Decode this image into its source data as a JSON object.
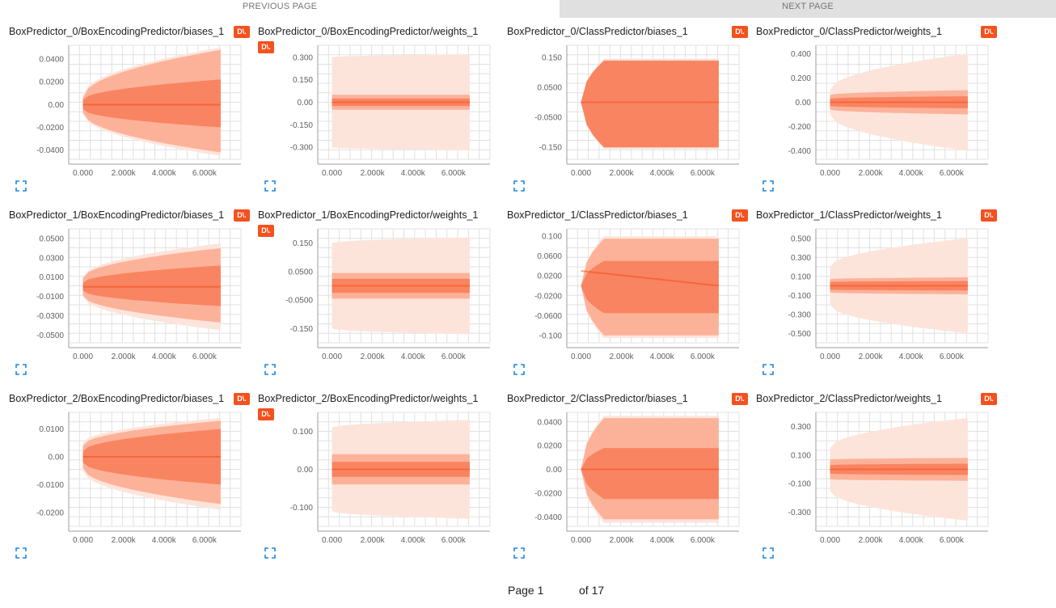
{
  "pager": {
    "prev_label": "PREVIOUS PAGE",
    "next_label": "NEXT PAGE"
  },
  "footer": {
    "page_label": "Page 1",
    "of_label": "of 17"
  },
  "download_label": "D\\.",
  "colors": {
    "band_light": "#fde4db",
    "band_mid": "#fba98d",
    "band_dark": "#f87e5b",
    "accent": "#f4511e",
    "grid": "#e0e0e0",
    "axis": "#9e9e9e"
  },
  "icons": {
    "expand": "expand-icon",
    "download": "download-icon"
  },
  "x_ticks": [
    "0.000",
    "2.000k",
    "4.000k",
    "6.000k"
  ],
  "x_tick_values": [
    0,
    2000,
    4000,
    6000
  ],
  "x_range": [
    -700,
    7800
  ],
  "chart_data": [
    {
      "type": "area",
      "title": "BoxPredictor_0/BoxEncodingPredictor/biases_1",
      "x_end": 6800,
      "x_start": 0,
      "ylim": [
        -0.048,
        0.052
      ],
      "y_ticks": [
        0.04,
        0.02,
        0,
        -0.02,
        -0.04
      ],
      "y_tick_labels": [
        "0.0400",
        "0.0200",
        "0.00",
        "-0.0200",
        "-0.0400"
      ],
      "bands": [
        {
          "start": [
            -0.008,
            0.008
          ],
          "end": [
            -0.045,
            0.05
          ]
        },
        {
          "start": [
            -0.007,
            0.006
          ],
          "end": [
            -0.042,
            0.048
          ]
        },
        {
          "start": [
            -0.004,
            0.004
          ],
          "end": [
            -0.02,
            0.022
          ]
        }
      ],
      "median": [
        0.0,
        0.0
      ]
    },
    {
      "type": "area",
      "title": "BoxPredictor_0/BoxEncodingPredictor/weights_1",
      "x_end": 6800,
      "x_start": 0,
      "ylim": [
        -0.38,
        0.38
      ],
      "y_ticks": [
        0.3,
        0.15,
        0,
        -0.15,
        -0.3
      ],
      "y_tick_labels": [
        "0.300",
        "0.150",
        "0.00",
        "-0.150",
        "-0.300"
      ],
      "bands": [
        {
          "start": [
            -0.3,
            0.3
          ],
          "end": [
            -0.32,
            0.32
          ]
        },
        {
          "start": [
            -0.05,
            0.05
          ],
          "end": [
            -0.05,
            0.05
          ]
        },
        {
          "start": [
            -0.025,
            0.025
          ],
          "end": [
            -0.025,
            0.025
          ]
        }
      ],
      "median": [
        0.0,
        0.0
      ]
    },
    {
      "type": "area",
      "title": "BoxPredictor_0/ClassPredictor/biases_1",
      "x_end": 6800,
      "x_start": 0,
      "ylim": [
        -0.19,
        0.19
      ],
      "y_ticks": [
        0.15,
        0.05,
        -0.05,
        -0.15
      ],
      "y_tick_labels": [
        "0.150",
        "0.0500",
        "-0.0500",
        "-0.150"
      ],
      "bands": [
        {
          "start": [
            -0.0,
            0.0
          ],
          "end": [
            -0.155,
            0.145
          ]
        },
        {
          "start": [
            -0.0,
            0.0
          ],
          "end": [
            -0.15,
            0.14
          ]
        },
        {
          "start": [
            -0.0,
            0.0
          ],
          "end": [
            -0.15,
            0.138
          ]
        }
      ],
      "median": [
        0.0,
        0.0
      ]
    },
    {
      "type": "area",
      "title": "BoxPredictor_0/ClassPredictor/weights_1",
      "x_end": 6800,
      "x_start": 0,
      "ylim": [
        -0.47,
        0.47
      ],
      "y_ticks": [
        0.4,
        0.2,
        0,
        -0.2,
        -0.4
      ],
      "y_tick_labels": [
        "0.400",
        "0.200",
        "0.00",
        "-0.200",
        "-0.400"
      ],
      "bands": [
        {
          "start": [
            -0.1,
            0.1
          ],
          "end": [
            -0.4,
            0.4
          ]
        },
        {
          "start": [
            -0.06,
            0.06
          ],
          "end": [
            -0.1,
            0.1
          ]
        },
        {
          "start": [
            -0.03,
            0.03
          ],
          "end": [
            -0.05,
            0.05
          ]
        }
      ],
      "median": [
        0.0,
        0.0
      ]
    },
    {
      "type": "area",
      "title": "BoxPredictor_1/BoxEncodingPredictor/biases_1",
      "x_end": 6800,
      "x_start": 0,
      "ylim": [
        -0.058,
        0.06
      ],
      "y_ticks": [
        0.05,
        0.03,
        0.01,
        -0.01,
        -0.03,
        -0.05
      ],
      "y_tick_labels": [
        "0.0500",
        "0.0300",
        "0.0100",
        "-0.0100",
        "-0.0300",
        "-0.0500"
      ],
      "bands": [
        {
          "start": [
            -0.01,
            0.01
          ],
          "end": [
            -0.045,
            0.045
          ]
        },
        {
          "start": [
            -0.009,
            0.009
          ],
          "end": [
            -0.037,
            0.04
          ]
        },
        {
          "start": [
            -0.004,
            0.004
          ],
          "end": [
            -0.02,
            0.022
          ]
        }
      ],
      "median": [
        0.0,
        0.0
      ]
    },
    {
      "type": "area",
      "title": "BoxPredictor_1/BoxEncodingPredictor/weights_1",
      "x_end": 6800,
      "x_start": 0,
      "ylim": [
        -0.2,
        0.2
      ],
      "y_ticks": [
        0.15,
        0.05,
        -0.05,
        -0.15
      ],
      "y_tick_labels": [
        "0.150",
        "0.0500",
        "-0.0500",
        "-0.150"
      ],
      "bands": [
        {
          "start": [
            -0.15,
            0.15
          ],
          "end": [
            -0.17,
            0.17
          ]
        },
        {
          "start": [
            -0.045,
            0.045
          ],
          "end": [
            -0.045,
            0.045
          ]
        },
        {
          "start": [
            -0.025,
            0.025
          ],
          "end": [
            -0.025,
            0.025
          ]
        }
      ],
      "median": [
        0.0,
        0.0
      ]
    },
    {
      "type": "area",
      "title": "BoxPredictor_1/ClassPredictor/biases_1",
      "x_end": 6800,
      "x_start": 0,
      "ylim": [
        -0.115,
        0.115
      ],
      "y_ticks": [
        0.1,
        0.06,
        0.02,
        -0.02,
        -0.06,
        -0.1
      ],
      "y_tick_labels": [
        "0.100",
        "0.0600",
        "0.0200",
        "-0.0200",
        "-0.0600",
        "-0.100"
      ],
      "bands": [
        {
          "start": [
            -0.0,
            0.0
          ],
          "end": [
            -0.105,
            0.1
          ]
        },
        {
          "start": [
            -0.0,
            0.0
          ],
          "end": [
            -0.1,
            0.095
          ]
        },
        {
          "start": [
            -0.0,
            0.0
          ],
          "end": [
            -0.055,
            0.05
          ]
        }
      ],
      "median": [
        0.03,
        0.0
      ]
    },
    {
      "type": "area",
      "title": "BoxPredictor_1/ClassPredictor/weights_1",
      "x_end": 6800,
      "x_start": 0,
      "ylim": [
        -0.6,
        0.6
      ],
      "y_ticks": [
        0.5,
        0.3,
        0.1,
        -0.1,
        -0.3,
        -0.5
      ],
      "y_tick_labels": [
        "0.500",
        "0.300",
        "0.100",
        "-0.100",
        "-0.300",
        "-0.500"
      ],
      "bands": [
        {
          "start": [
            -0.2,
            0.2
          ],
          "end": [
            -0.5,
            0.5
          ]
        },
        {
          "start": [
            -0.07,
            0.07
          ],
          "end": [
            -0.09,
            0.09
          ]
        },
        {
          "start": [
            -0.04,
            0.04
          ],
          "end": [
            -0.05,
            0.05
          ]
        }
      ],
      "median": [
        0.0,
        0.0
      ]
    },
    {
      "type": "area",
      "title": "BoxPredictor_2/BoxEncodingPredictor/biases_1",
      "x_end": 6800,
      "x_start": 0,
      "ylim": [
        -0.025,
        0.016
      ],
      "y_ticks": [
        0.01,
        0,
        -0.01,
        -0.02
      ],
      "y_tick_labels": [
        "0.0100",
        "0.00",
        "-0.0100",
        "-0.0200"
      ],
      "bands": [
        {
          "start": [
            -0.005,
            0.005
          ],
          "end": [
            -0.019,
            0.014
          ]
        },
        {
          "start": [
            -0.004,
            0.004
          ],
          "end": [
            -0.017,
            0.013
          ]
        },
        {
          "start": [
            -0.002,
            0.002
          ],
          "end": [
            -0.01,
            0.01
          ]
        }
      ],
      "median": [
        0.0,
        0.0
      ]
    },
    {
      "type": "area",
      "title": "BoxPredictor_2/BoxEncodingPredictor/weights_1",
      "x_end": 6800,
      "x_start": 0,
      "ylim": [
        -0.15,
        0.15
      ],
      "y_ticks": [
        0.1,
        0,
        -0.1
      ],
      "y_tick_labels": [
        "0.100",
        "0.00",
        "-0.100"
      ],
      "bands": [
        {
          "start": [
            -0.11,
            0.11
          ],
          "end": [
            -0.13,
            0.13
          ]
        },
        {
          "start": [
            -0.04,
            0.04
          ],
          "end": [
            -0.04,
            0.04
          ]
        },
        {
          "start": [
            -0.02,
            0.02
          ],
          "end": [
            -0.02,
            0.02
          ]
        }
      ],
      "median": [
        0.0,
        0.0
      ]
    },
    {
      "type": "area",
      "title": "BoxPredictor_2/ClassPredictor/biases_1",
      "x_end": 6800,
      "x_start": 0,
      "ylim": [
        -0.048,
        0.048
      ],
      "y_ticks": [
        0.04,
        0.02,
        0,
        -0.02,
        -0.04
      ],
      "y_tick_labels": [
        "0.0400",
        "0.0200",
        "0.00",
        "-0.0200",
        "-0.0400"
      ],
      "bands": [
        {
          "start": [
            -0.0,
            0.0
          ],
          "end": [
            -0.045,
            0.045
          ]
        },
        {
          "start": [
            -0.0,
            0.0
          ],
          "end": [
            -0.042,
            0.043
          ]
        },
        {
          "start": [
            -0.0,
            0.0
          ],
          "end": [
            -0.025,
            0.018
          ]
        }
      ],
      "median": [
        0.0,
        0.0
      ]
    },
    {
      "type": "area",
      "title": "BoxPredictor_2/ClassPredictor/weights_1",
      "x_end": 6800,
      "x_start": 0,
      "ylim": [
        -0.4,
        0.4
      ],
      "y_ticks": [
        0.3,
        0.1,
        -0.1,
        -0.3
      ],
      "y_tick_labels": [
        "0.300",
        "0.100",
        "-0.100",
        "-0.300"
      ],
      "bands": [
        {
          "start": [
            -0.15,
            0.15
          ],
          "end": [
            -0.36,
            0.36
          ]
        },
        {
          "start": [
            -0.07,
            0.07
          ],
          "end": [
            -0.08,
            0.08
          ]
        },
        {
          "start": [
            -0.03,
            0.03
          ],
          "end": [
            -0.04,
            0.04
          ]
        }
      ],
      "median": [
        0.0,
        0.0
      ]
    }
  ]
}
